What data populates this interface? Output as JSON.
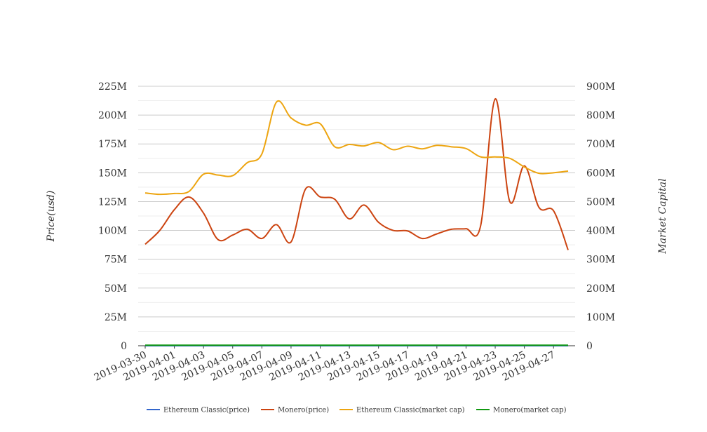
{
  "chart_data": {
    "type": "line",
    "title": "",
    "x_ticks": [
      "2019-03-30",
      "2019-04-01",
      "2019-04-03",
      "2019-04-05",
      "2019-04-07",
      "2019-04-09",
      "2019-04-11",
      "2019-04-13",
      "2019-04-15",
      "2019-04-17",
      "2019-04-19",
      "2019-04-21",
      "2019-04-23",
      "2019-04-25",
      "2019-04-27"
    ],
    "x": [
      "2019-03-30",
      "2019-03-31",
      "2019-04-01",
      "2019-04-02",
      "2019-04-03",
      "2019-04-04",
      "2019-04-05",
      "2019-04-06",
      "2019-04-07",
      "2019-04-08",
      "2019-04-09",
      "2019-04-10",
      "2019-04-11",
      "2019-04-12",
      "2019-04-13",
      "2019-04-14",
      "2019-04-15",
      "2019-04-16",
      "2019-04-17",
      "2019-04-18",
      "2019-04-19",
      "2019-04-20",
      "2019-04-21",
      "2019-04-22",
      "2019-04-23",
      "2019-04-24",
      "2019-04-25",
      "2019-04-26",
      "2019-04-27",
      "2019-04-28"
    ],
    "y_left": {
      "label": "Price(usd)",
      "range": [
        0,
        225000000
      ],
      "ticks": [
        "0",
        "25M",
        "50M",
        "75M",
        "100M",
        "125M",
        "150M",
        "175M",
        "200M",
        "225M"
      ]
    },
    "y_right": {
      "label": "Market Capital",
      "range": [
        0,
        900000000
      ],
      "ticks": [
        "0",
        "100M",
        "200M",
        "300M",
        "400M",
        "500M",
        "600M",
        "700M",
        "800M",
        "900M"
      ]
    },
    "grid": true,
    "legend_position": "bottom",
    "series": [
      {
        "name": "Ethereum Classic(price)",
        "axis": "left",
        "color": "#3366cc",
        "values": [
          4.2,
          4.1,
          4.1,
          4.0,
          4.6,
          4.6,
          4.5,
          4.9,
          4.9,
          6.4,
          6.0,
          5.9,
          5.9,
          5.3,
          5.4,
          5.3,
          5.4,
          5.2,
          5.3,
          5.2,
          5.3,
          5.3,
          5.3,
          5.0,
          5.0,
          5.0,
          4.8,
          4.6,
          4.6,
          4.6
        ]
      },
      {
        "name": "Monero(price)",
        "axis": "left",
        "color": "#cc4411",
        "values": [
          88000000,
          100000000,
          118000000,
          129000000,
          115000000,
          92000000,
          96000000,
          101000000,
          93000000,
          105000000,
          90000000,
          136000000,
          129000000,
          127000000,
          110000000,
          122000000,
          107000000,
          100000000,
          99500000,
          93000000,
          97000000,
          101000000,
          101500000,
          104000000,
          214000000,
          125000000,
          156000000,
          120000000,
          117000000,
          83000000
        ]
      },
      {
        "name": "Ethereum Classic(market cap)",
        "axis": "right",
        "color": "#eda511",
        "values": [
          530000000,
          525000000,
          528000000,
          535000000,
          595000000,
          592000000,
          590000000,
          635000000,
          665000000,
          845000000,
          790000000,
          765000000,
          770000000,
          690000000,
          698000000,
          693000000,
          705000000,
          680000000,
          692000000,
          683000000,
          695000000,
          690000000,
          684000000,
          655000000,
          655000000,
          650000000,
          620000000,
          598000000,
          600000000,
          606000000
        ]
      },
      {
        "name": "Monero(market cap)",
        "axis": "right",
        "color": "#119911",
        "values": [
          1700000,
          1700000,
          1700000,
          1700000,
          1700000,
          1700000,
          1700000,
          1700000,
          1700000,
          1700000,
          1700000,
          1700000,
          1700000,
          1700000,
          1700000,
          1700000,
          1700000,
          1700000,
          1700000,
          1700000,
          1700000,
          1700000,
          1700000,
          1700000,
          1700000,
          1700000,
          1700000,
          1700000,
          1700000,
          1700000
        ]
      }
    ]
  }
}
